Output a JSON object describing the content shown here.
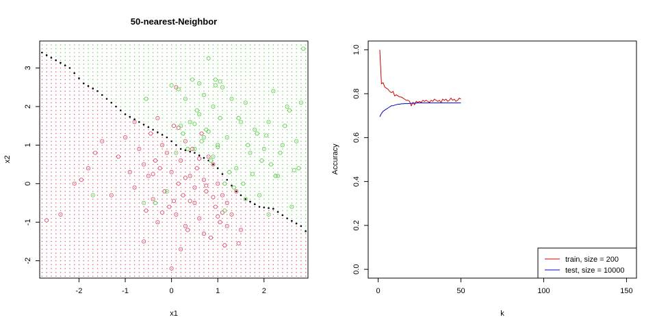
{
  "chart_data": [
    {
      "type": "scatter",
      "title": "50-nearest-Neighbor",
      "xlabel": "x1",
      "ylabel": "x2",
      "xlim": [
        -2.85,
        2.95
      ],
      "ylim": [
        -2.45,
        3.7
      ],
      "xticks": [
        -2,
        -1,
        0,
        1,
        2
      ],
      "yticks": [
        -2,
        -1,
        0,
        1,
        2,
        3
      ],
      "xtick_labels": [
        "-2",
        "-1",
        "0",
        "1",
        "2"
      ],
      "ytick_labels": [
        "-2",
        "-1",
        "0",
        "1",
        "2",
        "3"
      ],
      "classes": [
        {
          "color": "#DF536B",
          "region": "below boundary"
        },
        {
          "color": "#61D04F",
          "region": "above boundary"
        }
      ],
      "boundary_color": "#000000",
      "boundary": {
        "x": [
          -2.8,
          -2.5,
          -2.2,
          -1.9,
          -1.6,
          -1.3,
          -1.0,
          -0.7,
          -0.4,
          -0.1,
          0.2,
          0.5,
          0.8,
          1.0,
          1.2,
          1.4,
          1.6,
          1.9,
          2.2,
          2.5,
          2.8,
          2.95
        ],
        "y": [
          3.4,
          3.2,
          3.0,
          2.6,
          2.4,
          2.1,
          1.8,
          1.6,
          1.4,
          1.2,
          0.9,
          0.8,
          0.6,
          0.4,
          0.1,
          -0.2,
          -0.4,
          -0.6,
          -0.65,
          -0.9,
          -1.1,
          -1.3
        ]
      },
      "points": {
        "red": {
          "x": [
            -2.7,
            -2.4,
            -2.1,
            -1.95,
            -1.8,
            -1.65,
            -1.5,
            -1.3,
            -1.15,
            -1.0,
            -0.9,
            -0.8,
            -0.7,
            -0.6,
            -0.55,
            -0.5,
            -0.45,
            -0.4,
            -0.35,
            -0.3,
            -0.25,
            -0.2,
            -0.15,
            -0.1,
            -0.05,
            0.0,
            0.05,
            0.1,
            0.15,
            0.2,
            0.25,
            0.3,
            0.35,
            0.4,
            0.45,
            0.5,
            0.55,
            0.6,
            0.65,
            0.7,
            0.75,
            0.8,
            0.85,
            0.9,
            0.95,
            1.0,
            1.05,
            1.1,
            1.15,
            1.2,
            1.3,
            1.4,
            1.5,
            0.0,
            0.3,
            -0.6,
            0.2,
            0.5,
            -0.3,
            0.7,
            1.0,
            0.1,
            -0.2,
            0.4,
            0.9,
            1.2,
            -0.8,
            0.6,
            0.05,
            1.45,
            0.3,
            -0.4,
            0.75,
            1.1,
            0.15
          ],
          "y": [
            -0.95,
            -0.8,
            0.0,
            0.1,
            0.4,
            0.8,
            1.1,
            -0.3,
            0.7,
            1.2,
            0.3,
            -0.1,
            0.9,
            0.5,
            -0.7,
            0.2,
            1.3,
            -0.4,
            0.6,
            -1.0,
            0.4,
            1.0,
            -0.2,
            0.8,
            -0.6,
            0.3,
            1.5,
            -0.8,
            0.0,
            0.6,
            -0.3,
            1.1,
            -1.2,
            0.2,
            0.9,
            -0.5,
            0.4,
            -0.9,
            1.3,
            0.1,
            -0.2,
            0.7,
            -1.4,
            0.5,
            -0.6,
            0.0,
            -1.0,
            -0.3,
            -1.6,
            -0.5,
            -0.8,
            -0.2,
            -1.2,
            -2.2,
            -1.1,
            -1.5,
            -1.7,
            -0.1,
            1.7,
            -1.3,
            -0.85,
            2.5,
            -0.75,
            -0.45,
            -0.35,
            -1.1,
            1.6,
            0.65,
            -0.45,
            -1.55,
            0.15,
            0.25,
            -0.05,
            -0.75,
            1.45
          ]
        },
        "green": {
          "x": [
            -1.7,
            -0.55,
            0.0,
            0.15,
            0.3,
            0.4,
            0.45,
            0.5,
            0.55,
            0.6,
            0.65,
            0.7,
            0.75,
            0.8,
            0.85,
            0.9,
            0.95,
            1.0,
            1.05,
            1.1,
            1.15,
            1.2,
            1.3,
            1.4,
            1.5,
            1.6,
            1.7,
            1.8,
            1.9,
            2.0,
            2.1,
            2.2,
            2.3,
            2.4,
            2.5,
            2.6,
            2.7,
            2.8,
            2.85,
            0.2,
            0.6,
            0.9,
            1.25,
            1.55,
            1.85,
            2.15,
            2.45,
            0.35,
            0.7,
            1.05,
            1.35,
            1.65,
            1.95,
            2.25,
            2.55,
            0.25,
            0.5,
            0.8,
            1.0,
            1.45,
            1.75,
            2.05,
            2.35,
            2.65,
            -0.35,
            -0.1,
            1.15,
            1.6,
            2.1,
            2.75,
            0.95,
            -0.6,
            0.1
          ],
          "y": [
            -0.3,
            2.2,
            2.55,
            2.45,
            2.2,
            1.6,
            2.7,
            0.9,
            1.9,
            2.6,
            1.1,
            2.3,
            1.4,
            3.25,
            0.6,
            2.0,
            2.7,
            1.0,
            1.7,
            2.5,
            0.0,
            1.2,
            2.2,
            0.4,
            1.6,
            2.1,
            0.8,
            1.4,
            -0.3,
            0.9,
            1.6,
            2.4,
            0.2,
            1.0,
            2.0,
            -0.6,
            1.1,
            2.1,
            3.5,
            1.5,
            1.8,
            0.7,
            0.3,
            0.0,
            1.3,
            0.5,
            1.5,
            0.9,
            1.2,
            2.65,
            -0.1,
            1.0,
            0.6,
            0.2,
            1.9,
            1.3,
            1.55,
            1.35,
            0.95,
            1.7,
            0.25,
            1.25,
            0.8,
            0.35,
            -0.5,
            -0.2,
            -0.7,
            -0.4,
            -0.8,
            0.4,
            2.55,
            -0.5,
            0.8
          ]
        }
      },
      "grid": false
    },
    {
      "type": "line",
      "title": "",
      "xlabel": "k",
      "ylabel": "Accuracy",
      "xlim": [
        -6,
        156
      ],
      "ylim": [
        -0.04,
        1.04
      ],
      "xticks": [
        0,
        50,
        100,
        150
      ],
      "yticks": [
        0.0,
        0.2,
        0.4,
        0.6,
        0.8,
        1.0
      ],
      "xtick_labels": [
        "0",
        "50",
        "100",
        "150"
      ],
      "ytick_labels": [
        "0.0",
        "0.2",
        "0.4",
        "0.6",
        "0.8",
        "1.0"
      ],
      "x": [
        1,
        2,
        3,
        4,
        5,
        6,
        7,
        8,
        9,
        10,
        11,
        12,
        13,
        14,
        15,
        16,
        17,
        18,
        19,
        20,
        21,
        22,
        23,
        24,
        25,
        26,
        27,
        28,
        29,
        30,
        31,
        32,
        33,
        34,
        35,
        36,
        37,
        38,
        39,
        40,
        41,
        42,
        43,
        44,
        45,
        46,
        47,
        48,
        49,
        50
      ],
      "series": [
        {
          "name": "train, size = 200",
          "color": "#CC0000",
          "values": [
            1.0,
            0.845,
            0.85,
            0.83,
            0.825,
            0.82,
            0.81,
            0.805,
            0.81,
            0.79,
            0.795,
            0.79,
            0.785,
            0.785,
            0.78,
            0.775,
            0.77,
            0.77,
            0.765,
            0.745,
            0.76,
            0.75,
            0.765,
            0.76,
            0.765,
            0.76,
            0.77,
            0.765,
            0.77,
            0.765,
            0.76,
            0.77,
            0.765,
            0.775,
            0.77,
            0.765,
            0.77,
            0.76,
            0.775,
            0.77,
            0.775,
            0.765,
            0.77,
            0.78,
            0.77,
            0.775,
            0.765,
            0.77,
            0.78,
            0.775
          ]
        },
        {
          "name": "test, size = 10000",
          "color": "#0000CC",
          "values": [
            0.695,
            0.71,
            0.72,
            0.725,
            0.73,
            0.735,
            0.74,
            0.745,
            0.745,
            0.748,
            0.75,
            0.752,
            0.752,
            0.754,
            0.754,
            0.755,
            0.755,
            0.755,
            0.756,
            0.756,
            0.757,
            0.757,
            0.757,
            0.758,
            0.758,
            0.758,
            0.758,
            0.758,
            0.758,
            0.758,
            0.758,
            0.758,
            0.758,
            0.758,
            0.758,
            0.758,
            0.758,
            0.758,
            0.758,
            0.758,
            0.758,
            0.758,
            0.758,
            0.758,
            0.758,
            0.758,
            0.758,
            0.758,
            0.758,
            0.758
          ]
        }
      ],
      "legend": {
        "position": "bottom-right",
        "entries": [
          "train, size = 200",
          "test, size = 10000"
        ]
      },
      "grid": false
    }
  ]
}
